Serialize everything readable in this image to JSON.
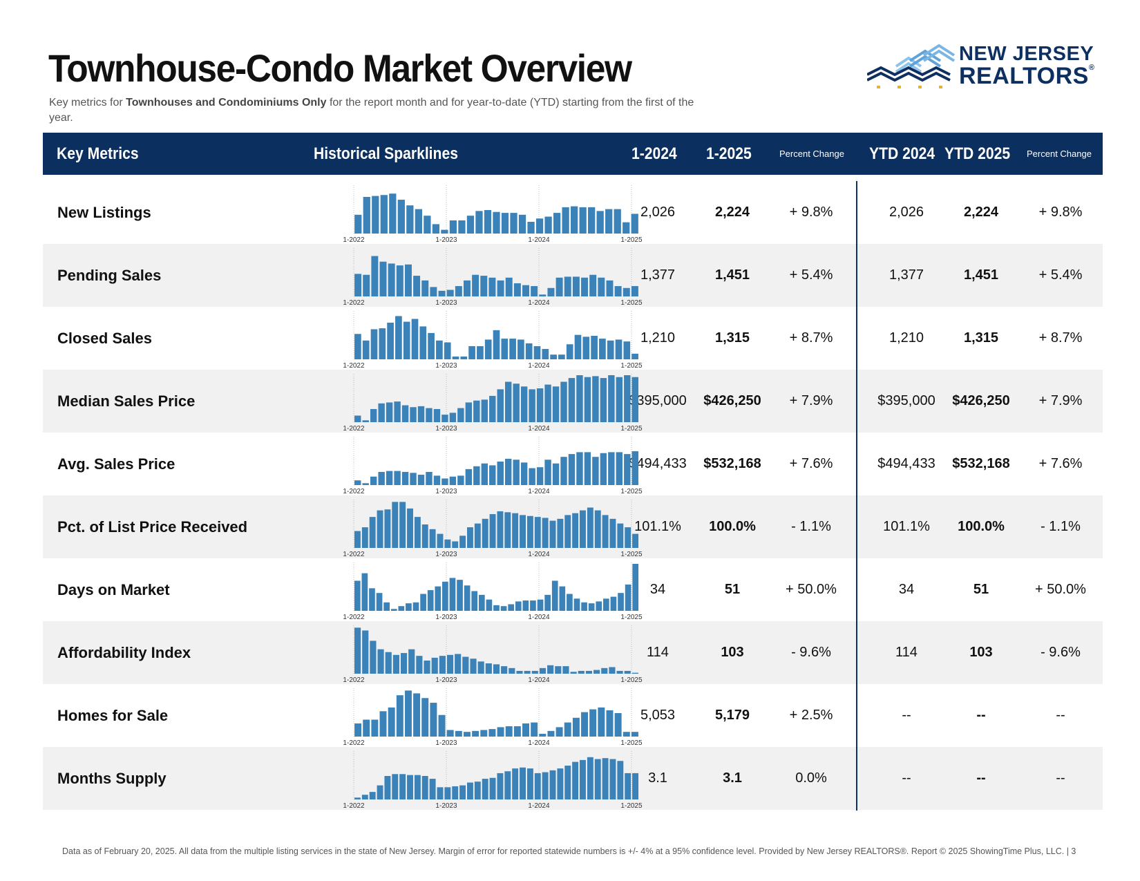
{
  "header": {
    "title": "Townhouse-Condo Market Overview",
    "subtitle_pre": "Key metrics for ",
    "subtitle_bold": "Townhouses and Condominiums Only",
    "subtitle_post": " for the report month and for year-to-date (YTD) starting from the first of the year."
  },
  "logo": {
    "line1": "NEW JERSEY",
    "line2": "REALTORS",
    "reg": "®"
  },
  "columns": {
    "metric": "Key Metrics",
    "sparklines": "Historical Sparklines",
    "m2024": "1-2024",
    "m2025": "1-2025",
    "pct": "Percent Change",
    "ytd2024": "YTD 2024",
    "ytd2025": "YTD 2025",
    "ytd_pct": "Percent Change"
  },
  "spark_axis_labels": [
    "1-2022",
    "1-2023",
    "1-2024",
    "1-2025"
  ],
  "rows": [
    {
      "label": "New Listings",
      "v2024": "2,026",
      "v2025": "2,224",
      "pct": "+ 9.8%",
      "ytd2024": "2,026",
      "ytd2025": "2,224",
      "ytd_pct": "+ 9.8%"
    },
    {
      "label": "Pending Sales",
      "v2024": "1,377",
      "v2025": "1,451",
      "pct": "+ 5.4%",
      "ytd2024": "1,377",
      "ytd2025": "1,451",
      "ytd_pct": "+ 5.4%"
    },
    {
      "label": "Closed Sales",
      "v2024": "1,210",
      "v2025": "1,315",
      "pct": "+ 8.7%",
      "ytd2024": "1,210",
      "ytd2025": "1,315",
      "ytd_pct": "+ 8.7%"
    },
    {
      "label": "Median Sales Price",
      "v2024": "$395,000",
      "v2025": "$426,250",
      "pct": "+ 7.9%",
      "ytd2024": "$395,000",
      "ytd2025": "$426,250",
      "ytd_pct": "+ 7.9%"
    },
    {
      "label": "Avg. Sales Price",
      "v2024": "$494,433",
      "v2025": "$532,168",
      "pct": "+ 7.6%",
      "ytd2024": "$494,433",
      "ytd2025": "$532,168",
      "ytd_pct": "+ 7.6%"
    },
    {
      "label": "Pct. of List Price Received",
      "v2024": "101.1%",
      "v2025": "100.0%",
      "pct": "- 1.1%",
      "ytd2024": "101.1%",
      "ytd2025": "100.0%",
      "ytd_pct": "- 1.1%"
    },
    {
      "label": "Days on Market",
      "v2024": "34",
      "v2025": "51",
      "pct": "+ 50.0%",
      "ytd2024": "34",
      "ytd2025": "51",
      "ytd_pct": "+ 50.0%"
    },
    {
      "label": "Affordability Index",
      "v2024": "114",
      "v2025": "103",
      "pct": "- 9.6%",
      "ytd2024": "114",
      "ytd2025": "103",
      "ytd_pct": "- 9.6%"
    },
    {
      "label": "Homes for Sale",
      "v2024": "5,053",
      "v2025": "5,179",
      "pct": "+ 2.5%",
      "ytd2024": "--",
      "ytd2025": "--",
      "ytd_pct": "--"
    },
    {
      "label": "Months Supply",
      "v2024": "3.1",
      "v2025": "3.1",
      "pct": "0.0%",
      "ytd2024": "--",
      "ytd2025": "--",
      "ytd_pct": "--"
    }
  ],
  "sparklines": [
    [
      40,
      78,
      80,
      82,
      85,
      72,
      60,
      52,
      38,
      20,
      8,
      28,
      28,
      38,
      48,
      50,
      46,
      44,
      44,
      40,
      25,
      32,
      36,
      44,
      56,
      58,
      56,
      56,
      48,
      52,
      52,
      24,
      42
    ],
    [
      48,
      46,
      86,
      74,
      70,
      66,
      68,
      44,
      34,
      20,
      12,
      14,
      22,
      34,
      46,
      44,
      40,
      34,
      40,
      28,
      24,
      22,
      4,
      18,
      40,
      42,
      42,
      40,
      46,
      40,
      34,
      22,
      18,
      22
    ],
    [
      54,
      40,
      64,
      66,
      78,
      92,
      80,
      86,
      70,
      56,
      40,
      36,
      6,
      6,
      28,
      28,
      42,
      62,
      44,
      44,
      42,
      34,
      28,
      22,
      10,
      10,
      32,
      52,
      48,
      50,
      44,
      40,
      42,
      38,
      12
    ],
    [
      14,
      4,
      28,
      40,
      42,
      44,
      36,
      32,
      34,
      30,
      28,
      16,
      20,
      30,
      42,
      46,
      48,
      56,
      70,
      86,
      82,
      76,
      70,
      72,
      80,
      76,
      86,
      94,
      100,
      96,
      98,
      94,
      100,
      96,
      100,
      96
    ],
    [
      10,
      4,
      18,
      28,
      30,
      30,
      28,
      26,
      22,
      28,
      20,
      14,
      18,
      20,
      34,
      40,
      46,
      42,
      50,
      56,
      54,
      48,
      36,
      38,
      54,
      46,
      60,
      66,
      70,
      70,
      60,
      68,
      70,
      70,
      66,
      72
    ],
    [
      36,
      44,
      66,
      80,
      82,
      98,
      98,
      84,
      66,
      50,
      40,
      30,
      18,
      14,
      26,
      44,
      52,
      62,
      72,
      78,
      76,
      74,
      70,
      68,
      66,
      64,
      58,
      62,
      70,
      74,
      80,
      86,
      80,
      70,
      62,
      52,
      44,
      30
    ],
    [
      64,
      80,
      48,
      38,
      18,
      4,
      10,
      16,
      18,
      36,
      44,
      52,
      62,
      70,
      66,
      54,
      42,
      34,
      24,
      12,
      10,
      14,
      20,
      22,
      22,
      24,
      34,
      64,
      52,
      36,
      26,
      18,
      16,
      20,
      26,
      30,
      38,
      56,
      100
    ],
    [
      98,
      92,
      70,
      52,
      46,
      40,
      44,
      52,
      38,
      28,
      34,
      38,
      40,
      42,
      36,
      32,
      26,
      22,
      20,
      16,
      12,
      6,
      6,
      6,
      12,
      18,
      16,
      16,
      4,
      6,
      6,
      8,
      12,
      14,
      6,
      6,
      2
    ],
    [
      28,
      36,
      36,
      54,
      62,
      88,
      98,
      92,
      82,
      72,
      46,
      14,
      12,
      10,
      12,
      14,
      16,
      20,
      22,
      22,
      28,
      30,
      6,
      12,
      20,
      30,
      40,
      52,
      58,
      62,
      56,
      50,
      10,
      10
    ],
    [
      4,
      10,
      16,
      30,
      50,
      54,
      54,
      52,
      52,
      50,
      44,
      26,
      26,
      28,
      30,
      36,
      38,
      44,
      46,
      56,
      60,
      66,
      68,
      66,
      56,
      58,
      62,
      66,
      72,
      80,
      84,
      90,
      86,
      88,
      86,
      82,
      56,
      56
    ]
  ],
  "colors": {
    "header_bg": "#0b2f5e",
    "bar": "#3b82b8",
    "shade": "#f1f1f1"
  },
  "footer": "Data as of February 20, 2025. All data from the multiple listing services in the state of New Jersey. Margin of error for reported statewide numbers is +/- 4% at a 95% confidence level. Provided by New Jersey REALTORS®. Report © 2025 ShowingTime Plus, LLC. |  3"
}
